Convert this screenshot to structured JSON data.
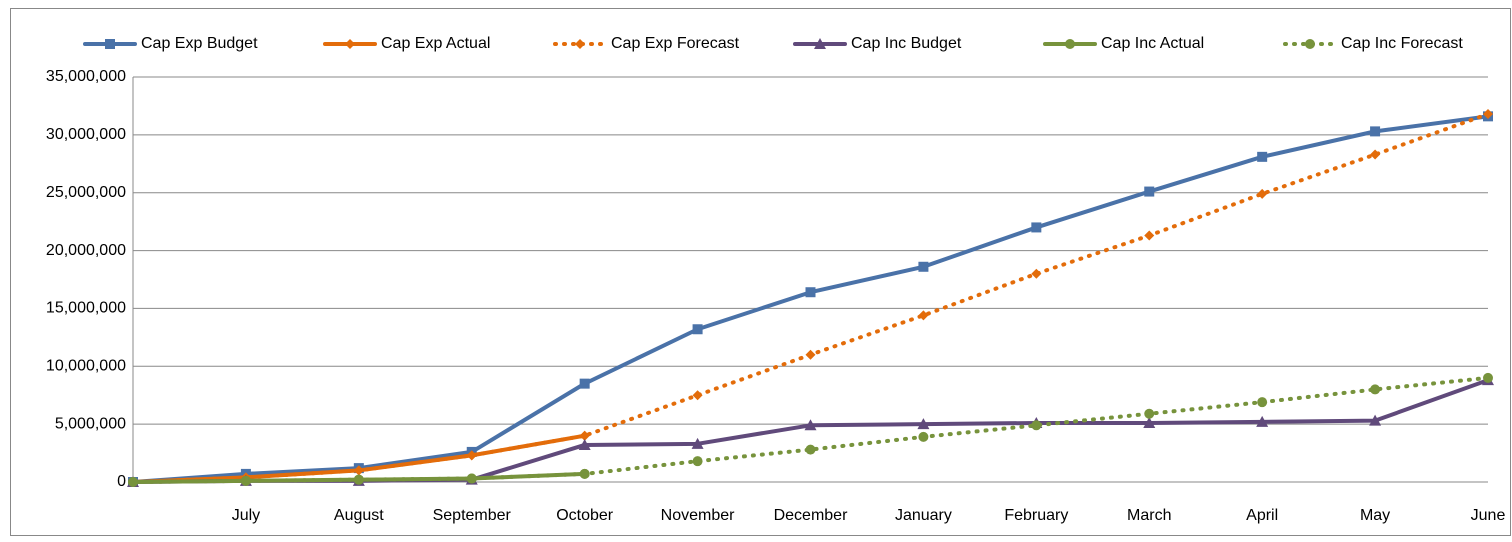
{
  "chart_data": {
    "type": "line",
    "categories": [
      null,
      "July",
      "August",
      "September",
      "October",
      "November",
      "December",
      "January",
      "February",
      "March",
      "April",
      "May",
      "June"
    ],
    "series": [
      {
        "name": "Cap Exp Budget",
        "color": "#4a72a8",
        "marker": "square",
        "dashed": false,
        "values": [
          0,
          700000,
          1200000,
          2600000,
          8500000,
          13200000,
          16400000,
          18600000,
          22000000,
          25100000,
          28100000,
          30300000,
          31600000
        ]
      },
      {
        "name": "Cap Exp Actual",
        "color": "#e36c0a",
        "marker": "diamond",
        "dashed": false,
        "values": [
          0,
          400000,
          1000000,
          2300000,
          4000000,
          null,
          null,
          null,
          null,
          null,
          null,
          null,
          null
        ]
      },
      {
        "name": "Cap Exp Forecast",
        "color": "#e36c0a",
        "marker": "diamond",
        "dashed": true,
        "values": [
          0,
          400000,
          1000000,
          2300000,
          4000000,
          7500000,
          11000000,
          14400000,
          18000000,
          21300000,
          24900000,
          28300000,
          31800000
        ]
      },
      {
        "name": "Cap Inc Budget",
        "color": "#604a7b",
        "marker": "triangle",
        "dashed": false,
        "values": [
          0,
          100000,
          100000,
          200000,
          3200000,
          3300000,
          4900000,
          5000000,
          5100000,
          5100000,
          5200000,
          5300000,
          8800000
        ]
      },
      {
        "name": "Cap Inc Actual",
        "color": "#77933c",
        "marker": "circle",
        "dashed": false,
        "values": [
          0,
          100000,
          200000,
          300000,
          700000,
          null,
          null,
          null,
          null,
          null,
          null,
          null,
          null
        ]
      },
      {
        "name": "Cap Inc Forecast",
        "color": "#77933c",
        "marker": "circle",
        "dashed": true,
        "values": [
          0,
          100000,
          200000,
          300000,
          700000,
          1800000,
          2800000,
          3900000,
          4900000,
          5900000,
          6900000,
          8000000,
          9000000
        ]
      }
    ],
    "ylim": [
      0,
      35000000
    ],
    "yticks": [
      0,
      {
        "value": 5000000,
        "label": "5,000,000"
      },
      {
        "value": 10000000,
        "label": "10,000,000"
      },
      {
        "value": 15000000,
        "label": "15,000,000"
      },
      {
        "value": 20000000,
        "label": "20,000,000"
      },
      {
        "value": 25000000,
        "label": "25,000,000"
      },
      {
        "value": 30000000,
        "label": "30,000,000"
      },
      {
        "value": 35000000,
        "label": "35,000,000"
      }
    ],
    "grid": true,
    "legend": "top"
  }
}
